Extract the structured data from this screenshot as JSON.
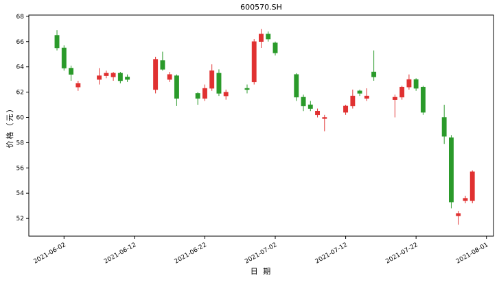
{
  "chart": {
    "title": "600570.SH",
    "xlabel": "日 期",
    "ylabel": "价格（元）"
  },
  "chart_data": {
    "type": "candlestick",
    "title": "600570.SH",
    "xlabel": "日 期",
    "ylabel": "价格（元）",
    "up_color": "#e03131",
    "down_color": "#2a9a2a",
    "color_convention": "red = close >= open (rise), green = close < open (fall)",
    "ylim": [
      50.6,
      68.1
    ],
    "yticks": [
      52,
      54,
      56,
      58,
      60,
      62,
      64,
      66,
      68
    ],
    "xticks": [
      "2021-06-02",
      "2021-06-12",
      "2021-06-22",
      "2021-07-02",
      "2021-07-12",
      "2021-07-22",
      "2021-08-01"
    ],
    "x_domain": [
      "2021-05-28",
      "2021-08-02"
    ],
    "grid": false,
    "legend": "none",
    "candles": [
      {
        "date": "2021-06-01",
        "open": 66.5,
        "high": 66.9,
        "low": 65.3,
        "close": 65.5
      },
      {
        "date": "2021-06-02",
        "open": 65.5,
        "high": 65.7,
        "low": 63.7,
        "close": 63.9
      },
      {
        "date": "2021-06-03",
        "open": 63.9,
        "high": 64.1,
        "low": 62.9,
        "close": 63.4
      },
      {
        "date": "2021-06-04",
        "open": 62.4,
        "high": 62.9,
        "low": 62.1,
        "close": 62.7
      },
      {
        "date": "2021-06-07",
        "open": 63.0,
        "high": 63.9,
        "low": 62.6,
        "close": 63.3
      },
      {
        "date": "2021-06-08",
        "open": 63.3,
        "high": 63.7,
        "low": 63.1,
        "close": 63.5
      },
      {
        "date": "2021-06-09",
        "open": 63.2,
        "high": 63.6,
        "low": 62.9,
        "close": 63.5
      },
      {
        "date": "2021-06-10",
        "open": 63.5,
        "high": 63.6,
        "low": 62.7,
        "close": 62.9
      },
      {
        "date": "2021-06-11",
        "open": 63.2,
        "high": 63.4,
        "low": 62.8,
        "close": 63.0
      },
      {
        "date": "2021-06-15",
        "open": 62.2,
        "high": 64.8,
        "low": 61.9,
        "close": 64.6
      },
      {
        "date": "2021-06-16",
        "open": 64.5,
        "high": 65.2,
        "low": 63.7,
        "close": 63.8
      },
      {
        "date": "2021-06-17",
        "open": 63.0,
        "high": 63.6,
        "low": 62.8,
        "close": 63.4
      },
      {
        "date": "2021-06-18",
        "open": 63.3,
        "high": 63.4,
        "low": 60.9,
        "close": 61.5
      },
      {
        "date": "2021-06-21",
        "open": 61.9,
        "high": 62.0,
        "low": 61.0,
        "close": 61.5
      },
      {
        "date": "2021-06-22",
        "open": 61.5,
        "high": 62.6,
        "low": 61.3,
        "close": 62.3
      },
      {
        "date": "2021-06-23",
        "open": 62.3,
        "high": 64.2,
        "low": 62.1,
        "close": 63.7
      },
      {
        "date": "2021-06-24",
        "open": 63.5,
        "high": 63.8,
        "low": 61.7,
        "close": 61.9
      },
      {
        "date": "2021-06-25",
        "open": 61.7,
        "high": 62.2,
        "low": 61.4,
        "close": 62.0
      },
      {
        "date": "2021-06-28",
        "open": 62.3,
        "high": 62.6,
        "low": 61.9,
        "close": 62.2
      },
      {
        "date": "2021-06-29",
        "open": 62.8,
        "high": 66.2,
        "low": 62.6,
        "close": 66.0
      },
      {
        "date": "2021-06-30",
        "open": 66.0,
        "high": 67.0,
        "low": 65.5,
        "close": 66.6
      },
      {
        "date": "2021-07-01",
        "open": 66.6,
        "high": 66.8,
        "low": 66.0,
        "close": 66.2
      },
      {
        "date": "2021-07-02",
        "open": 65.9,
        "high": 66.0,
        "low": 64.9,
        "close": 65.1
      },
      {
        "date": "2021-07-05",
        "open": 63.4,
        "high": 63.5,
        "low": 61.3,
        "close": 61.6
      },
      {
        "date": "2021-07-06",
        "open": 61.6,
        "high": 61.8,
        "low": 60.5,
        "close": 60.9
      },
      {
        "date": "2021-07-07",
        "open": 61.0,
        "high": 61.3,
        "low": 60.5,
        "close": 60.7
      },
      {
        "date": "2021-07-08",
        "open": 60.2,
        "high": 60.7,
        "low": 60.0,
        "close": 60.5
      },
      {
        "date": "2021-07-09",
        "open": 59.9,
        "high": 60.2,
        "low": 58.9,
        "close": 60.0
      },
      {
        "date": "2021-07-12",
        "open": 60.4,
        "high": 61.0,
        "low": 60.2,
        "close": 60.9
      },
      {
        "date": "2021-07-13",
        "open": 60.9,
        "high": 62.2,
        "low": 60.7,
        "close": 61.7
      },
      {
        "date": "2021-07-14",
        "open": 62.1,
        "high": 62.2,
        "low": 61.7,
        "close": 61.9
      },
      {
        "date": "2021-07-15",
        "open": 61.5,
        "high": 62.3,
        "low": 61.3,
        "close": 61.7
      },
      {
        "date": "2021-07-16",
        "open": 63.6,
        "high": 65.3,
        "low": 62.9,
        "close": 63.2
      },
      {
        "date": "2021-07-19",
        "open": 61.4,
        "high": 61.8,
        "low": 60.0,
        "close": 61.6
      },
      {
        "date": "2021-07-20",
        "open": 61.6,
        "high": 62.5,
        "low": 61.4,
        "close": 62.4
      },
      {
        "date": "2021-07-21",
        "open": 62.4,
        "high": 63.4,
        "low": 62.2,
        "close": 63.0
      },
      {
        "date": "2021-07-22",
        "open": 63.0,
        "high": 63.1,
        "low": 62.1,
        "close": 62.3
      },
      {
        "date": "2021-07-23",
        "open": 62.4,
        "high": 62.5,
        "low": 60.2,
        "close": 60.4
      },
      {
        "date": "2021-07-26",
        "open": 60.0,
        "high": 61.0,
        "low": 57.9,
        "close": 58.5
      },
      {
        "date": "2021-07-27",
        "open": 58.4,
        "high": 58.6,
        "low": 52.8,
        "close": 53.3
      },
      {
        "date": "2021-07-28",
        "open": 52.2,
        "high": 52.6,
        "low": 51.5,
        "close": 52.4
      },
      {
        "date": "2021-07-29",
        "open": 53.4,
        "high": 53.8,
        "low": 53.2,
        "close": 53.6
      },
      {
        "date": "2021-07-30",
        "open": 53.4,
        "high": 55.8,
        "low": 53.2,
        "close": 55.7
      }
    ]
  }
}
